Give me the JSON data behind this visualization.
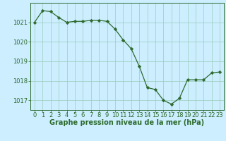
{
  "x": [
    0,
    1,
    2,
    3,
    4,
    5,
    6,
    7,
    8,
    9,
    10,
    11,
    12,
    13,
    14,
    15,
    16,
    17,
    18,
    19,
    20,
    21,
    22,
    23
  ],
  "y": [
    1021.0,
    1021.6,
    1021.55,
    1021.25,
    1021.0,
    1021.05,
    1021.05,
    1021.1,
    1021.1,
    1021.05,
    1020.65,
    1020.1,
    1019.65,
    1018.75,
    1017.65,
    1017.55,
    1017.0,
    1016.8,
    1017.1,
    1018.05,
    1018.05,
    1018.05,
    1018.4,
    1018.45
  ],
  "ylim": [
    1016.5,
    1022.0
  ],
  "yticks": [
    1017,
    1018,
    1019,
    1020,
    1021
  ],
  "xlim": [
    -0.5,
    23.5
  ],
  "xticks": [
    0,
    1,
    2,
    3,
    4,
    5,
    6,
    7,
    8,
    9,
    10,
    11,
    12,
    13,
    14,
    15,
    16,
    17,
    18,
    19,
    20,
    21,
    22,
    23
  ],
  "xlabel": "Graphe pression niveau de la mer (hPa)",
  "line_color": "#2d6a2d",
  "marker": "D",
  "marker_size": 2.2,
  "bg_color": "#cceeff",
  "grid_color": "#99ccbb",
  "tick_color": "#2d6a2d",
  "label_color": "#2d6a2d",
  "xlabel_fontsize": 7.0,
  "tick_fontsize": 6.0,
  "linewidth": 0.9
}
